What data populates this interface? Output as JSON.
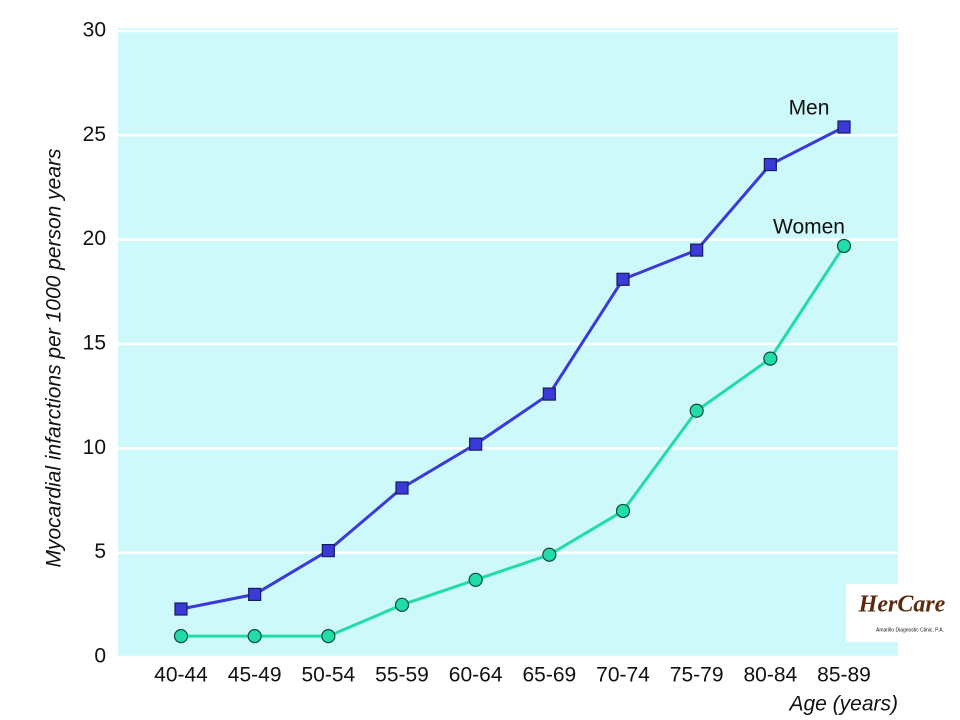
{
  "chart_data": {
    "type": "line",
    "x_label": "Age (years)",
    "y_label": "Myocardial infarctions per 1000 person years",
    "categories": [
      "40-44",
      "45-49",
      "50-54",
      "55-59",
      "60-64",
      "65-69",
      "70-74",
      "75-79",
      "80-84",
      "85-89"
    ],
    "series": [
      {
        "name": "Men",
        "color": "#3a3ad8",
        "marker": "square",
        "values": [
          2.3,
          3.0,
          5.1,
          8.1,
          10.2,
          12.6,
          18.1,
          19.5,
          23.6,
          25.4
        ]
      },
      {
        "name": "Women",
        "color": "#22dca8",
        "marker": "circle",
        "values": [
          1.0,
          1.0,
          1.0,
          2.5,
          3.7,
          4.9,
          7.0,
          11.8,
          14.3,
          19.7
        ]
      }
    ],
    "ylim": [
      0,
      30
    ],
    "yticks": [
      0,
      5,
      10,
      15,
      20,
      25,
      30
    ],
    "grid": true,
    "background": "#cdf9fa"
  },
  "logo": {
    "name": "HerCare",
    "subtitle": "Amarillo Diagnostic Clinic, P.A."
  }
}
